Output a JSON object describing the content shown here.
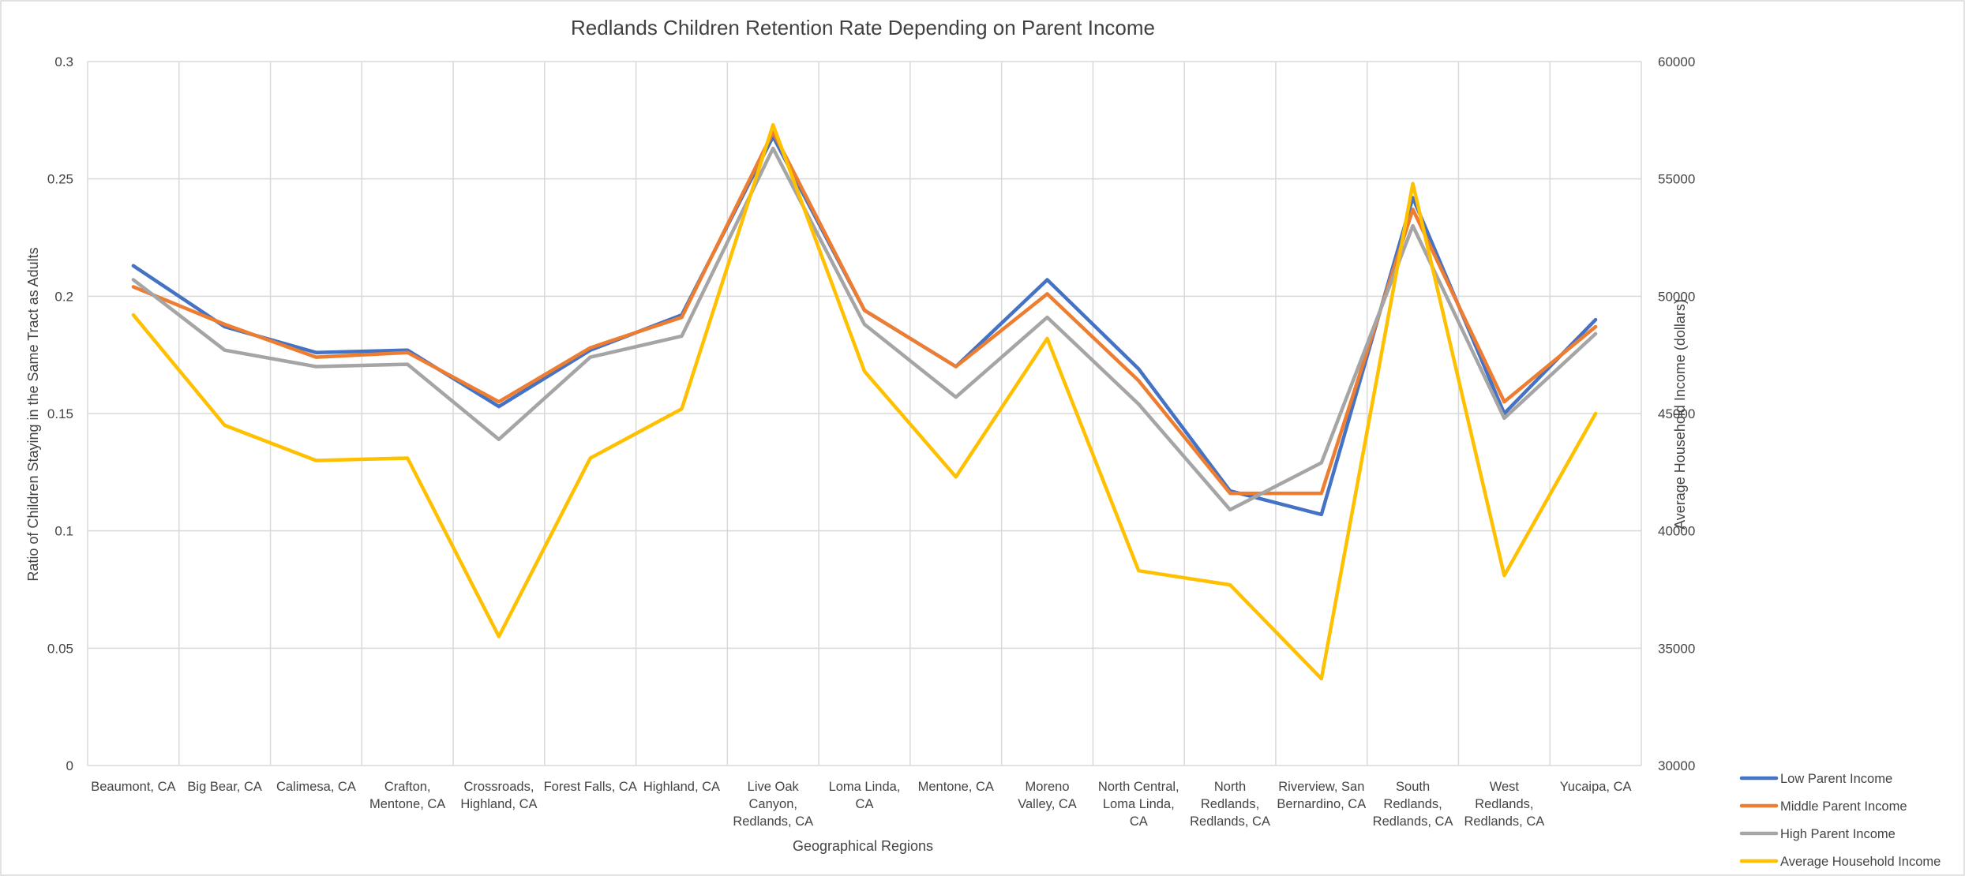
{
  "chart_data": {
    "type": "line",
    "title": "Redlands Children Retention Rate Depending on Parent Income",
    "xlabel": "Geographical Regions",
    "ylabel": "Ratio of Children Staying in the Same Tract as Adults",
    "y2label": "Average Household Income (dollars)",
    "ylim": [
      0,
      0.3
    ],
    "y2lim": [
      30000,
      60000
    ],
    "yticks": [
      "0",
      "0.05",
      "0.1",
      "0.15",
      "0.2",
      "0.25",
      "0.3"
    ],
    "y2ticks": [
      "30000",
      "35000",
      "40000",
      "45000",
      "50000",
      "55000",
      "60000"
    ],
    "grid": true,
    "legend_position": "bottom-right",
    "categories": [
      [
        "Beaumont, CA"
      ],
      [
        "Big Bear, CA"
      ],
      [
        "Calimesa, CA"
      ],
      [
        "Crafton,",
        "Mentone, CA"
      ],
      [
        "Crossroads,",
        "Highland, CA"
      ],
      [
        "Forest Falls, CA"
      ],
      [
        "Highland, CA"
      ],
      [
        "Live Oak",
        "Canyon,",
        "Redlands, CA"
      ],
      [
        "Loma Linda,",
        "CA"
      ],
      [
        "Mentone, CA"
      ],
      [
        "Moreno",
        "Valley, CA"
      ],
      [
        "North Central,",
        "Loma Linda,",
        "CA"
      ],
      [
        "North",
        "Redlands,",
        "Redlands, CA"
      ],
      [
        "Riverview, San",
        "Bernardino, CA"
      ],
      [
        "South",
        "Redlands,",
        "Redlands, CA"
      ],
      [
        "West",
        "Redlands,",
        "Redlands, CA"
      ],
      [
        "Yucaipa, CA"
      ]
    ],
    "series": [
      {
        "name": "Low Parent Income",
        "axis": "left",
        "color": "#4472C4",
        "values": [
          0.213,
          0.187,
          0.176,
          0.177,
          0.153,
          0.177,
          0.192,
          0.268,
          0.194,
          0.17,
          0.207,
          0.169,
          0.117,
          0.107,
          0.242,
          0.15,
          0.19
        ]
      },
      {
        "name": "Middle Parent Income",
        "axis": "left",
        "color": "#ED7D31",
        "values": [
          0.204,
          0.188,
          0.174,
          0.176,
          0.155,
          0.178,
          0.191,
          0.27,
          0.194,
          0.17,
          0.201,
          0.164,
          0.116,
          0.116,
          0.237,
          0.155,
          0.187
        ]
      },
      {
        "name": "High Parent Income",
        "axis": "left",
        "color": "#A5A5A5",
        "values": [
          0.207,
          0.177,
          0.17,
          0.171,
          0.139,
          0.174,
          0.183,
          0.263,
          0.188,
          0.157,
          0.191,
          0.154,
          0.109,
          0.129,
          0.23,
          0.148,
          0.184
        ]
      },
      {
        "name": "Average Household Income",
        "axis": "right",
        "color": "#FFC000",
        "values": [
          49200,
          44500,
          43000,
          43100,
          35500,
          43100,
          45200,
          57300,
          46800,
          42300,
          48200,
          38300,
          37700,
          33700,
          54800,
          38100,
          45000
        ]
      }
    ]
  }
}
